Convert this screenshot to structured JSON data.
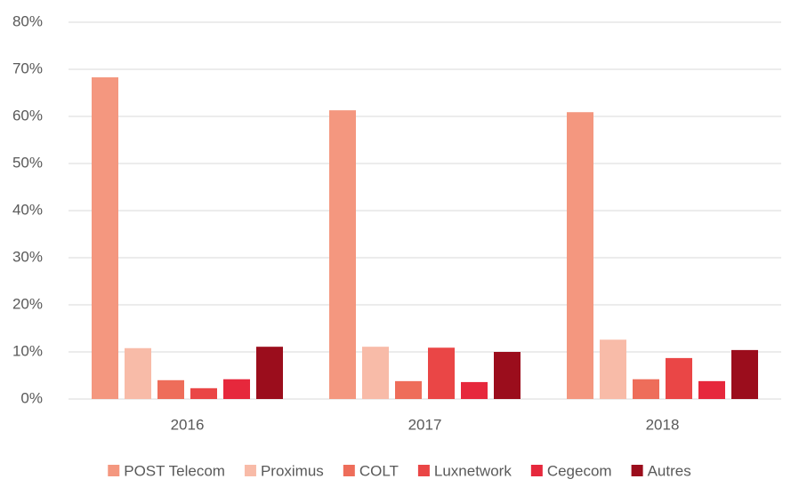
{
  "chart_data": {
    "type": "bar",
    "categories": [
      "2016",
      "2017",
      "2018"
    ],
    "series": [
      {
        "name": "POST Telecom",
        "color": "#f4977f",
        "values": [
          68.3,
          61.3,
          60.9
        ]
      },
      {
        "name": "Proximus",
        "color": "#f8bba8",
        "values": [
          10.8,
          11.1,
          12.6
        ]
      },
      {
        "name": "COLT",
        "color": "#ee6d5a",
        "values": [
          4.0,
          3.8,
          4.2
        ]
      },
      {
        "name": "Luxnetwork",
        "color": "#ea4646",
        "values": [
          2.3,
          10.9,
          8.7
        ]
      },
      {
        "name": "Cegecom",
        "color": "#e6283c",
        "values": [
          4.2,
          3.6,
          3.8
        ]
      },
      {
        "name": "Autres",
        "color": "#9b0d1c",
        "values": [
          11.1,
          10.0,
          10.4
        ]
      }
    ],
    "ylim": [
      0,
      80
    ],
    "yticks": [
      {
        "value": 0,
        "label": "0%"
      },
      {
        "value": 10,
        "label": "10%"
      },
      {
        "value": 20,
        "label": "20%"
      },
      {
        "value": 30,
        "label": "30%"
      },
      {
        "value": 40,
        "label": "40%"
      },
      {
        "value": 50,
        "label": "50%"
      },
      {
        "value": 60,
        "label": "60%"
      },
      {
        "value": 70,
        "label": "70%"
      },
      {
        "value": 80,
        "label": "80%"
      }
    ],
    "grid": true,
    "legend": "bottom"
  }
}
